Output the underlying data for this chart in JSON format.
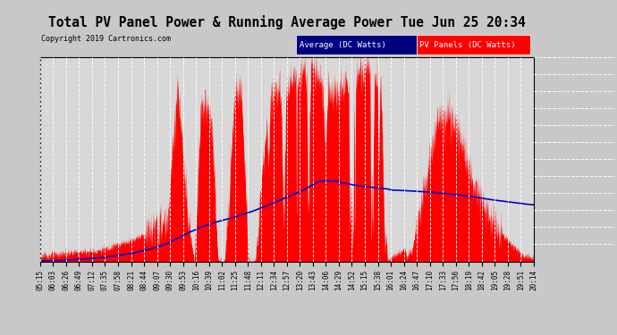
{
  "title": "Total PV Panel Power & Running Average Power Tue Jun 25 20:34",
  "copyright": "Copyright 2019 Cartronics.com",
  "legend_avg": "Average (DC Watts)",
  "legend_pv": "PV Panels (DC Watts)",
  "bg_color": "#c8c8c8",
  "plot_bg_color": "#d8d8d8",
  "grid_color": "#ffffff",
  "title_color": "#000000",
  "pv_color": "#ff0000",
  "avg_color": "#0000cc",
  "ymin": 0.0,
  "ymax": 3696.4,
  "ytick_values": [
    0.0,
    308.0,
    616.1,
    924.1,
    1232.1,
    1540.2,
    1848.2,
    2156.2,
    2464.3,
    2772.3,
    3080.3,
    3388.4,
    3696.4
  ],
  "xtick_labels": [
    "05:15",
    "06:03",
    "06:26",
    "06:49",
    "07:12",
    "07:35",
    "07:58",
    "08:21",
    "08:44",
    "09:07",
    "09:30",
    "09:53",
    "10:16",
    "10:39",
    "11:02",
    "11:25",
    "11:48",
    "12:11",
    "12:34",
    "12:57",
    "13:20",
    "13:43",
    "14:06",
    "14:29",
    "14:52",
    "15:15",
    "15:38",
    "16:01",
    "16:24",
    "16:47",
    "17:10",
    "17:33",
    "17:56",
    "18:19",
    "18:42",
    "19:05",
    "19:28",
    "19:51",
    "20:14"
  ]
}
